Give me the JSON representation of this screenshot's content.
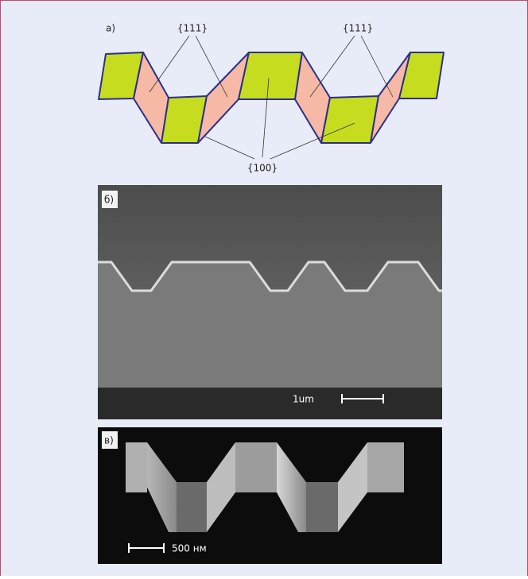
{
  "panels": [
    {
      "label": "а)",
      "annotations": [
        "{111}",
        "{111}",
        "{100}"
      ]
    },
    {
      "label": "б)",
      "scale_bar": "1um"
    },
    {
      "label": "в)",
      "scale_bar": "500 нм"
    }
  ]
}
